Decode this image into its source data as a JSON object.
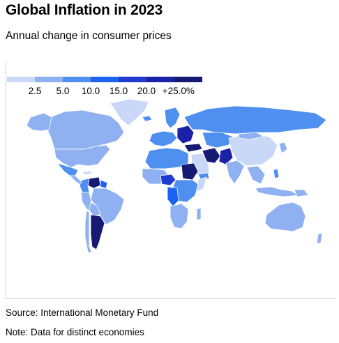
{
  "title": "Global Inflation in 2023",
  "subtitle": "Annual change in consumer prices",
  "legend": {
    "colors": [
      "#c9d8f7",
      "#8fb1f2",
      "#4f8ff0",
      "#1c63f2",
      "#203bd0",
      "#1c22a8",
      "#171a73"
    ],
    "ticks": [
      "2.5",
      "5.0",
      "10.0",
      "15.0",
      "20.0",
      "+25.0%"
    ]
  },
  "source": "Source: International Monetary Fund",
  "note": "Note: Data for distinct economies"
}
